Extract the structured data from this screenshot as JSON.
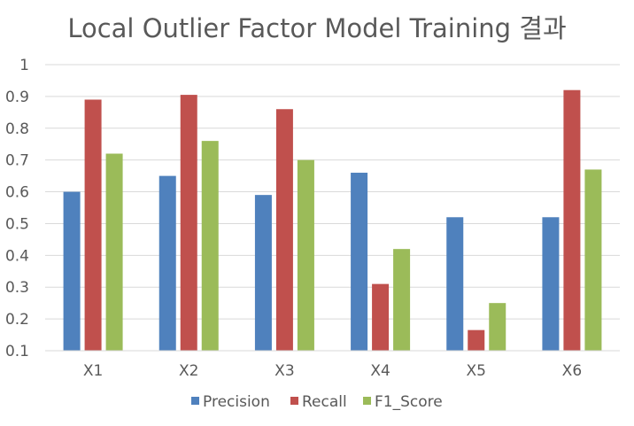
{
  "chart_data": {
    "type": "bar",
    "title": "Local Outlier Factor Model Training 결과",
    "xlabel": "",
    "ylabel": "",
    "categories": [
      "X1",
      "X2",
      "X3",
      "X4",
      "X5",
      "X6"
    ],
    "series": [
      {
        "name": "Precision",
        "color": "#4f81bd",
        "values": [
          0.6,
          0.65,
          0.59,
          0.66,
          0.52,
          0.52
        ]
      },
      {
        "name": "Recall",
        "color": "#c0504d",
        "values": [
          0.89,
          0.905,
          0.86,
          0.31,
          0.165,
          0.92
        ]
      },
      {
        "name": "F1_Score",
        "color": "#9bbb59",
        "values": [
          0.72,
          0.76,
          0.7,
          0.42,
          0.25,
          0.67
        ]
      }
    ],
    "ylim": [
      0.1,
      1
    ],
    "yticks": [
      "0.1",
      "0.2",
      "0.3",
      "0.4",
      "0.5",
      "0.6",
      "0.7",
      "0.8",
      "0.9",
      "1"
    ],
    "grid": true,
    "legend": "bottom"
  }
}
